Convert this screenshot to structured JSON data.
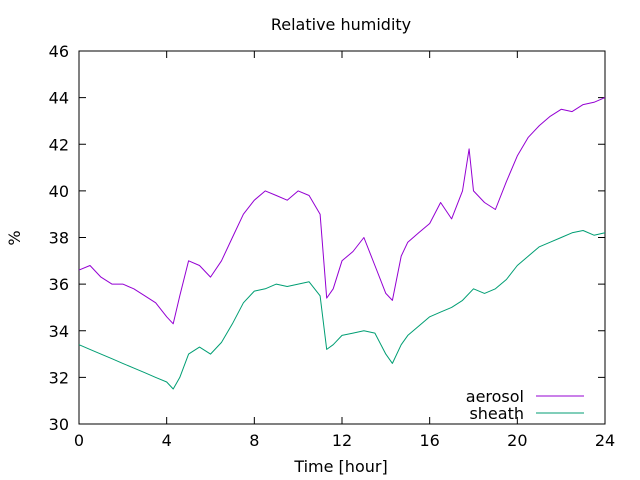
{
  "chart_data": {
    "type": "line",
    "title": "Relative humidity",
    "xlabel": "Time [hour]",
    "ylabel": "%",
    "xlim": [
      0,
      24
    ],
    "ylim": [
      30,
      46
    ],
    "xticks": [
      0,
      4,
      8,
      12,
      16,
      20,
      24
    ],
    "yticks": [
      30,
      32,
      34,
      36,
      38,
      40,
      42,
      44,
      46
    ],
    "grid": false,
    "legend": "bottom-right",
    "series": [
      {
        "name": "aerosol",
        "color": "#9400d3",
        "x": [
          0,
          0.5,
          1,
          1.5,
          2,
          2.5,
          3,
          3.5,
          4,
          4.3,
          4.6,
          5,
          5.5,
          6,
          6.5,
          7,
          7.5,
          8,
          8.5,
          9,
          9.5,
          10,
          10.5,
          11,
          11.3,
          11.6,
          12,
          12.5,
          13,
          13.5,
          14,
          14.3,
          14.7,
          15,
          15.5,
          16,
          16.5,
          17,
          17.5,
          17.8,
          18,
          18.5,
          19,
          19.5,
          20,
          20.5,
          21,
          21.5,
          22,
          22.5,
          23,
          23.5,
          24
        ],
        "values": [
          36.6,
          36.8,
          36.3,
          36.0,
          36.0,
          35.8,
          35.5,
          35.2,
          34.6,
          34.3,
          35.5,
          37.0,
          36.8,
          36.3,
          37.0,
          38.0,
          39.0,
          39.6,
          40.0,
          39.8,
          39.6,
          40.0,
          39.8,
          39.0,
          35.4,
          35.8,
          37.0,
          37.4,
          38.0,
          36.8,
          35.6,
          35.3,
          37.2,
          37.8,
          38.2,
          38.6,
          39.5,
          38.8,
          40.0,
          41.8,
          40.0,
          39.5,
          39.2,
          40.4,
          41.5,
          42.3,
          42.8,
          43.2,
          43.5,
          43.4,
          43.7,
          43.8,
          44.0
        ]
      },
      {
        "name": "sheath",
        "color": "#009e73",
        "x": [
          0,
          0.5,
          1,
          1.5,
          2,
          2.5,
          3,
          3.5,
          4,
          4.3,
          4.6,
          5,
          5.5,
          6,
          6.5,
          7,
          7.5,
          8,
          8.5,
          9,
          9.5,
          10,
          10.5,
          11,
          11.3,
          11.6,
          12,
          12.5,
          13,
          13.5,
          14,
          14.3,
          14.7,
          15,
          15.5,
          16,
          16.5,
          17,
          17.5,
          18,
          18.5,
          19,
          19.5,
          20,
          20.5,
          21,
          21.5,
          22,
          22.5,
          23,
          23.5,
          24
        ],
        "values": [
          33.4,
          33.2,
          33.0,
          32.8,
          32.6,
          32.4,
          32.2,
          32.0,
          31.8,
          31.5,
          32.0,
          33.0,
          33.3,
          33.0,
          33.5,
          34.3,
          35.2,
          35.7,
          35.8,
          36.0,
          35.9,
          36.0,
          36.1,
          35.5,
          33.2,
          33.4,
          33.8,
          33.9,
          34.0,
          33.9,
          33.0,
          32.6,
          33.4,
          33.8,
          34.2,
          34.6,
          34.8,
          35.0,
          35.3,
          35.8,
          35.6,
          35.8,
          36.2,
          36.8,
          37.2,
          37.6,
          37.8,
          38.0,
          38.2,
          38.3,
          38.1,
          38.2
        ]
      }
    ]
  }
}
